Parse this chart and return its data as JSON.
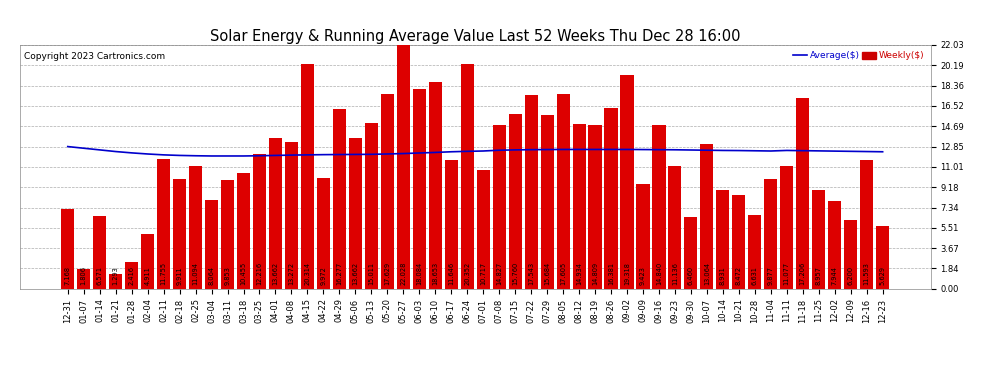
{
  "title": "Solar Energy & Running Average Value Last 52 Weeks Thu Dec 28 16:00",
  "copyright": "Copyright 2023 Cartronics.com",
  "legend_avg": "Average($)",
  "legend_weekly": "Weekly($)",
  "categories": [
    "12-31",
    "01-07",
    "01-14",
    "01-21",
    "01-28",
    "02-04",
    "02-11",
    "02-18",
    "02-25",
    "03-04",
    "03-11",
    "03-18",
    "03-25",
    "04-01",
    "04-08",
    "04-15",
    "04-22",
    "04-29",
    "05-06",
    "05-13",
    "05-20",
    "05-27",
    "06-03",
    "06-10",
    "06-17",
    "06-24",
    "07-01",
    "07-08",
    "07-15",
    "07-22",
    "07-29",
    "08-05",
    "08-12",
    "08-19",
    "08-26",
    "09-02",
    "09-09",
    "09-16",
    "09-23",
    "09-30",
    "10-07",
    "10-14",
    "10-21",
    "10-28",
    "11-04",
    "11-11",
    "11-18",
    "11-25",
    "12-02",
    "12-09",
    "12-16",
    "12-23"
  ],
  "bar_values": [
    7.168,
    1.806,
    6.571,
    1.293,
    2.416,
    4.911,
    11.755,
    9.911,
    11.094,
    8.064,
    9.853,
    10.455,
    12.216,
    13.662,
    13.272,
    20.314,
    9.972,
    16.277,
    13.662,
    15.011,
    17.629,
    22.028,
    18.084,
    18.653,
    11.646,
    20.352,
    10.717,
    14.827,
    15.76,
    17.543,
    15.684,
    17.605,
    14.934,
    14.809,
    16.381,
    19.318,
    9.423,
    14.84,
    11.136,
    6.46,
    13.064,
    8.931,
    8.472,
    6.631,
    9.877,
    11.077,
    17.206,
    8.957,
    7.944,
    6.2,
    11.593,
    5.629
  ],
  "avg_line": [
    12.85,
    12.7,
    12.55,
    12.4,
    12.28,
    12.18,
    12.1,
    12.05,
    12.02,
    12.0,
    12.0,
    12.0,
    12.02,
    12.05,
    12.08,
    12.1,
    12.12,
    12.13,
    12.14,
    12.15,
    12.18,
    12.22,
    12.27,
    12.32,
    12.38,
    12.42,
    12.45,
    12.52,
    12.55,
    12.57,
    12.58,
    12.59,
    12.59,
    12.59,
    12.59,
    12.59,
    12.58,
    12.57,
    12.56,
    12.54,
    12.52,
    12.5,
    12.49,
    12.47,
    12.45,
    12.5,
    12.48,
    12.46,
    12.44,
    12.42,
    12.4,
    12.38
  ],
  "yticks": [
    0.0,
    1.84,
    3.67,
    5.51,
    7.34,
    9.18,
    11.01,
    12.85,
    14.69,
    16.52,
    18.36,
    20.19,
    22.03
  ],
  "bar_color": "#dd0000",
  "avg_color": "#0000cc",
  "weekly_color": "#cc0000",
  "bg_color": "#ffffff",
  "grid_color": "#999999",
  "title_fontsize": 10.5,
  "copyright_fontsize": 6.5,
  "tick_fontsize": 6.0,
  "bar_label_fontsize": 4.8,
  "ylim_max": 22.03
}
